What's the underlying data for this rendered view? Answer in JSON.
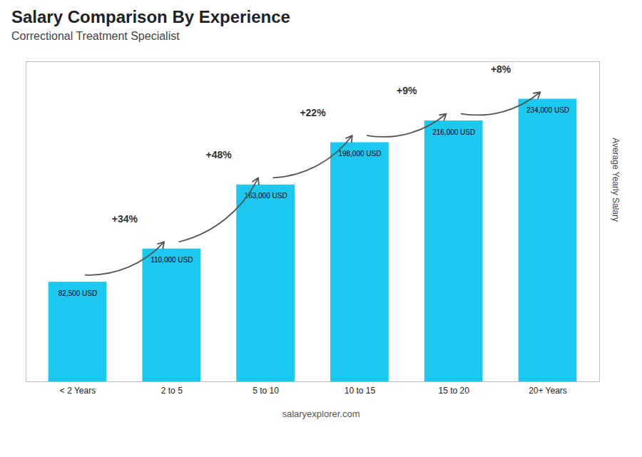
{
  "chart_data": {
    "type": "bar",
    "title": "Salary Comparison By Experience",
    "subtitle": "Correctional Treatment Specialist",
    "categories": [
      "< 2 Years",
      "2 to 5",
      "5 to 10",
      "10 to 15",
      "15 to 20",
      "20+ Years"
    ],
    "values": [
      82500,
      110000,
      163000,
      198000,
      216000,
      234000
    ],
    "value_labels": [
      "82,500 USD",
      "110,000 USD",
      "163,000 USD",
      "198,000 USD",
      "216,000 USD",
      "234,000 USD"
    ],
    "data_labels": true,
    "annotations": [
      "+34%",
      "+48%",
      "+22%",
      "+9%",
      "+8%"
    ],
    "ylabel": "Average Yearly Salary",
    "caption": "salaryexplorer.com",
    "color": "#1BC8F0",
    "ylim": [
      0,
      265000
    ],
    "grid": false,
    "tick_labels": "x"
  }
}
